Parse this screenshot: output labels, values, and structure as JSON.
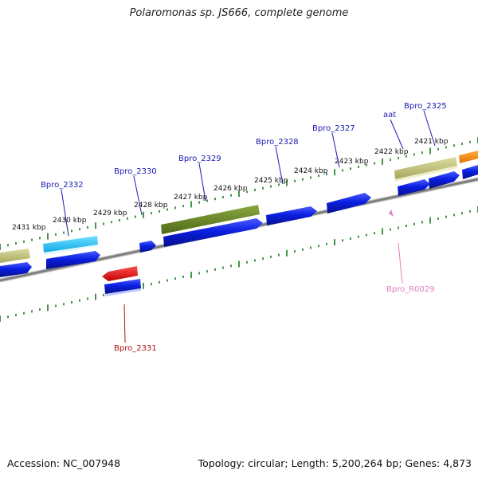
{
  "title": "Polaromonas sp. JS666, complete genome",
  "footer": {
    "accession": "Accession: NC_007948",
    "summary": "Topology: circular; Length: 5,200,264 bp; Genes: 4,873"
  },
  "colors": {
    "backbone": "#8a8a8a",
    "cds_forward": "#0a1ee0",
    "cds_reverse": "#0a1ee0",
    "tick": "#1a7a1a",
    "label_blue": "#1a1ab0",
    "label_red": "#b01010",
    "label_pink": "#e080c0"
  },
  "scale": {
    "ticks": [
      "2431 kbp",
      "2430 kbp",
      "2429 kbp",
      "2428 kbp",
      "2427 kbp",
      "2426 kbp",
      "2425 kbp",
      "2424 kbp",
      "2423 kbp",
      "2422 kbp",
      "2421 kbp"
    ]
  },
  "labels": [
    {
      "name": "Bpro_2332",
      "color": "#1a1ab0"
    },
    {
      "name": "Bpro_2330",
      "color": "#1a1ab0"
    },
    {
      "name": "Bpro_2329",
      "color": "#1a1ab0"
    },
    {
      "name": "Bpro_2328",
      "color": "#1a1ab0"
    },
    {
      "name": "Bpro_2327",
      "color": "#1a1ab0"
    },
    {
      "name": "aat",
      "color": "#1a1ab0"
    },
    {
      "name": "Bpro_2325",
      "color": "#1a1ab0"
    },
    {
      "name": "Bpro_2331",
      "color": "#b01010"
    },
    {
      "name": "Bpro_R0029",
      "color": "#e080c0"
    }
  ]
}
